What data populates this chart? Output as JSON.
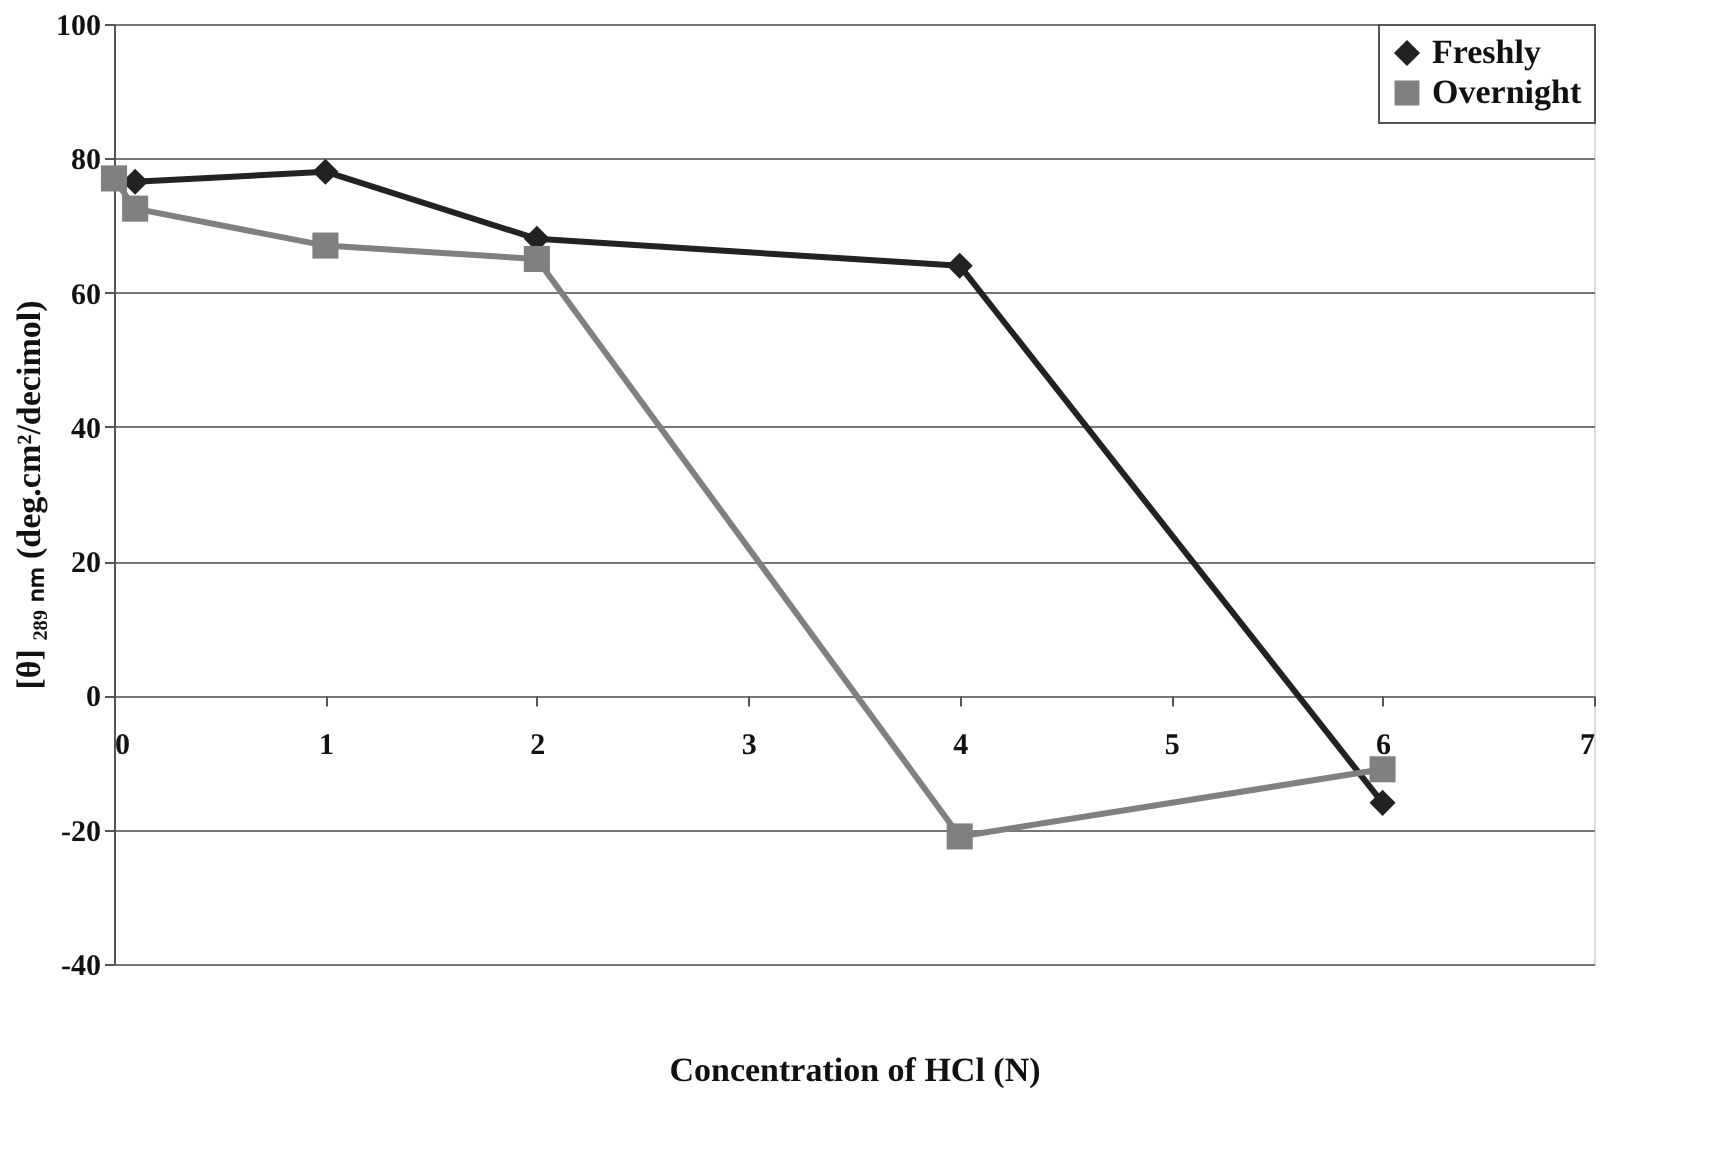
{
  "chart_data": {
    "type": "line",
    "xlabel": "Concentration of HCl (N)",
    "ylabel": "[θ] ₂₈₉ ₙₘ (deg.cm²/decimol)",
    "xlim": [
      0,
      7
    ],
    "xticks": [
      0,
      1,
      2,
      3,
      4,
      5,
      6,
      7
    ],
    "ylim": [
      -40,
      100
    ],
    "yticks": [
      -40,
      -20,
      0,
      20,
      40,
      60,
      80,
      100
    ],
    "grid": "y",
    "legend": "top right",
    "line_style": "solid",
    "series": [
      {
        "name": "Freshly",
        "color": "#222222",
        "marker": "diamond",
        "x": [
          0.1,
          1,
          2,
          4,
          6
        ],
        "values": [
          76.5,
          78,
          68,
          64,
          -16
        ]
      },
      {
        "name": "Overnight",
        "color": "#808080",
        "marker": "square",
        "x": [
          0,
          0.1,
          1,
          2,
          4,
          6
        ],
        "values": [
          77,
          72.5,
          67,
          65,
          -21,
          -11
        ]
      }
    ]
  }
}
